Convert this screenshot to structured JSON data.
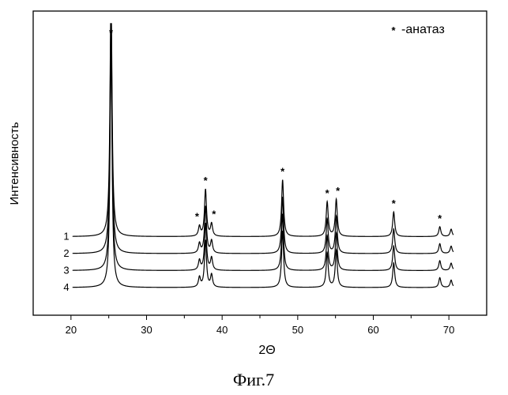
{
  "chart_data": {
    "type": "line",
    "title": "",
    "xlabel": "2Θ",
    "ylabel": "Интенсивность",
    "xlim": [
      15,
      75
    ],
    "xticks": [
      20,
      30,
      40,
      50,
      60,
      70
    ],
    "tick_labels": [
      "20",
      "30",
      "40",
      "50",
      "60",
      "70"
    ],
    "grid": false,
    "legend": {
      "marker": "*",
      "text": "-анатаз",
      "placement": "top-right"
    },
    "peak_marker": "*",
    "peaks": [
      {
        "two_theta": 25.3,
        "height": 100
      },
      {
        "two_theta": 37.0,
        "height": 4
      },
      {
        "two_theta": 37.8,
        "height": 19
      },
      {
        "two_theta": 38.6,
        "height": 5
      },
      {
        "two_theta": 48.0,
        "height": 23
      },
      {
        "two_theta": 53.9,
        "height": 14
      },
      {
        "two_theta": 55.1,
        "height": 15
      },
      {
        "two_theta": 62.7,
        "height": 10
      },
      {
        "two_theta": 68.8,
        "height": 4
      },
      {
        "two_theta": 70.3,
        "height": 3
      }
    ],
    "series": [
      {
        "name": "1",
        "offset": 3
      },
      {
        "name": "2",
        "offset": 2
      },
      {
        "name": "3",
        "offset": 1
      },
      {
        "name": "4",
        "offset": 0
      }
    ],
    "caption": "Фиг.7"
  }
}
